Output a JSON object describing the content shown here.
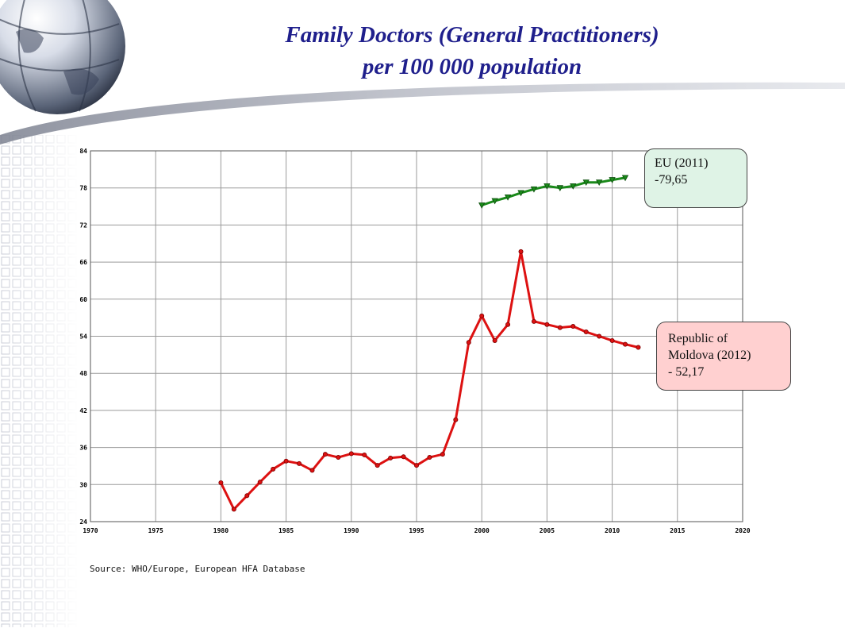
{
  "title": {
    "line1": "Family Doctors (General Practitioners)",
    "line2": "per 100 000 population"
  },
  "source": "Source: WHO/Europe, European HFA Database",
  "annotations": {
    "eu": [
      "EU (2011)",
      "-79,65"
    ],
    "moldova": [
      "Republic of",
      "Moldova (2012)",
      "- 52,17"
    ]
  },
  "colors": {
    "title": "#1f1f8c",
    "moldova_line": "#dd1111",
    "eu_line": "#1a8a1a",
    "eu_box": "#dff3e6",
    "moldova_box": "#ffd0d0",
    "grid": "#9a9a9a"
  },
  "chart_data": {
    "type": "line",
    "xlim": [
      1970,
      2020
    ],
    "ylim": [
      24,
      84
    ],
    "xticks": [
      1970,
      1975,
      1980,
      1985,
      1990,
      1995,
      2000,
      2005,
      2010,
      2015,
      2020
    ],
    "yticks": [
      24,
      30,
      36,
      42,
      48,
      54,
      60,
      66,
      72,
      78,
      84
    ],
    "grid": true,
    "series": [
      {
        "name": "Republic of Moldova",
        "color": "#dd1111",
        "marker": "circle",
        "x": [
          1980,
          1981,
          1982,
          1983,
          1984,
          1985,
          1986,
          1987,
          1988,
          1989,
          1990,
          1991,
          1992,
          1993,
          1994,
          1995,
          1996,
          1997,
          1998,
          1999,
          2000,
          2001,
          2002,
          2003,
          2004,
          2005,
          2006,
          2007,
          2008,
          2009,
          2010,
          2011,
          2012
        ],
        "y": [
          30.3,
          26.0,
          28.2,
          30.4,
          32.5,
          33.8,
          33.4,
          32.3,
          34.9,
          34.4,
          35.0,
          34.8,
          33.1,
          34.3,
          34.5,
          33.1,
          34.4,
          34.9,
          40.5,
          53.0,
          57.3,
          53.3,
          55.9,
          67.7,
          56.4,
          55.9,
          55.4,
          55.6,
          54.7,
          54.0,
          53.3,
          52.7,
          52.2
        ]
      },
      {
        "name": "EU",
        "color": "#1a8a1a",
        "marker": "triangle-down",
        "x": [
          2000,
          2001,
          2002,
          2003,
          2004,
          2005,
          2006,
          2007,
          2008,
          2009,
          2010,
          2011
        ],
        "y": [
          75.2,
          75.9,
          76.5,
          77.2,
          77.8,
          78.3,
          78.0,
          78.3,
          78.9,
          78.9,
          79.3,
          79.65
        ]
      }
    ]
  }
}
